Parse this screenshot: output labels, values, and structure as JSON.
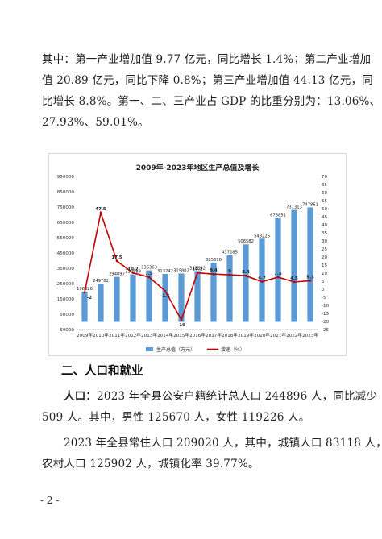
{
  "paragraph1": [
    "其中：第一产业增加值 9.77 亿元，同比增长 1.4%；第二产业增加",
    "值 20.89 亿元，同比下降 0.8%；第三产业增加值 44.13 亿元，同",
    "比增长 8.8%。第一、二、三产业占 GDP 的比重分别为：13.06%、",
    "27.93%、59.01%。"
  ],
  "section_heading": "二、人口和就业",
  "population": {
    "label": "人口：",
    "lines": [
      "2023 年全县公安户籍统计总人口 244896 人，同比减少",
      "509 人。其中，男性 125670 人，女性 119226 人。",
      "2023 年全县常住人口 209020 人，其中，城镇人口 83118 人，",
      "农村人口 125902 人，城镇化率 39.77%。"
    ]
  },
  "page_number": "- 2 -",
  "colors": {
    "bar": "#5b9bd5",
    "line": "#c00000",
    "grid": "#e0e0e0"
  },
  "chart_data": {
    "type": "bar",
    "title": "2009年-2023年地区生产总值及增长",
    "categories": [
      "2009年",
      "2010年",
      "2011年",
      "2012年",
      "2013年",
      "2014年",
      "2015年",
      "2016年",
      "2017年",
      "2018年",
      "2019年",
      "2020年",
      "2021年",
      "2022年",
      "2023年"
    ],
    "series": [
      {
        "name": "生产总值（万元）",
        "type": "bar",
        "axis": "left",
        "values": [
          198326,
          249782,
          294097,
          310588,
          336363,
          313242,
          315802,
          332302,
          385670,
          437285,
          506582,
          543226,
          678851,
          731313,
          747861
        ],
        "labels": [
          "198326",
          "249782",
          "294097",
          "310588",
          "336363",
          "313242",
          "315802",
          "332302",
          "385670",
          "437285",
          "506582",
          "543226",
          "678851",
          "731313",
          "747861"
        ]
      },
      {
        "name": "增速（%）",
        "type": "line",
        "axis": "right",
        "values": [
          -2,
          47.5,
          17.5,
          10.2,
          7.5,
          -1.1,
          -19,
          10.2,
          9.4,
          9,
          8.4,
          4.7,
          7.5,
          4.5,
          5.3
        ],
        "labels": [
          "-2",
          "47.5",
          "17.5",
          "10.2",
          "7.5",
          "-1.1",
          "-19",
          "10.2",
          "9.4",
          "9",
          "8.4",
          "4.7",
          "7.5",
          "4.5",
          "5.3"
        ]
      }
    ],
    "y_left": {
      "min": -50000,
      "max": 950000,
      "step": 100000,
      "ticks": [
        "950000",
        "850000",
        "750000",
        "650000",
        "550000",
        "450000",
        "350000",
        "250000",
        "150000",
        "50000",
        "-50000"
      ]
    },
    "y_right": {
      "min": -25,
      "max": 70,
      "step": 5,
      "ticks": [
        "70",
        "65",
        "60",
        "55",
        "50",
        "45",
        "40",
        "35",
        "30",
        "25",
        "20",
        "15",
        "10",
        "5",
        "0",
        "-5",
        "-10",
        "-15",
        "-20",
        "-25"
      ]
    },
    "legend_position": "bottom",
    "grid": false
  }
}
